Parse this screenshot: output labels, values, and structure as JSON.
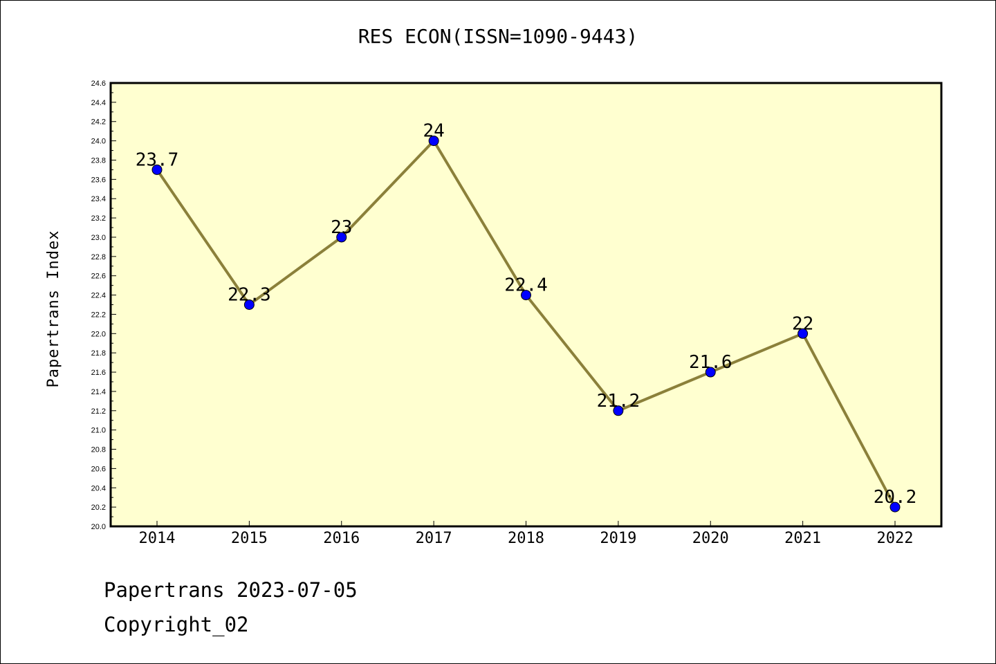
{
  "footer": {
    "line1": "Papertrans 2023-07-05",
    "line2": "Copyright_02"
  },
  "colors": {
    "plot_bg": "#ffffd0",
    "line": "#8b803a",
    "marker": "#0000ff"
  },
  "chart_data": {
    "type": "line",
    "title": "RES ECON(ISSN=1090-9443)",
    "xlabel": "",
    "ylabel": "Papertrans Index",
    "categories": [
      "2014",
      "2015",
      "2016",
      "2017",
      "2018",
      "2019",
      "2020",
      "2021",
      "2022"
    ],
    "series": [
      {
        "values": [
          23.7,
          22.3,
          23.0,
          24.0,
          22.4,
          21.2,
          21.6,
          22.0,
          20.2
        ],
        "labels": [
          "23.7",
          "22.3",
          "23",
          "24",
          "22.4",
          "21.2",
          "21.6",
          "22",
          "20.2"
        ]
      }
    ],
    "ylim": [
      20.0,
      24.6
    ],
    "yticks": [
      "20.0",
      "20.2",
      "20.4",
      "20.6",
      "20.8",
      "21.0",
      "21.2",
      "21.4",
      "21.6",
      "21.8",
      "22.0",
      "22.2",
      "22.4",
      "22.6",
      "22.8",
      "23.0",
      "23.2",
      "23.4",
      "23.6",
      "23.8",
      "24.0",
      "24.2",
      "24.4",
      "24.6"
    ],
    "grid": false,
    "legend": "none"
  }
}
